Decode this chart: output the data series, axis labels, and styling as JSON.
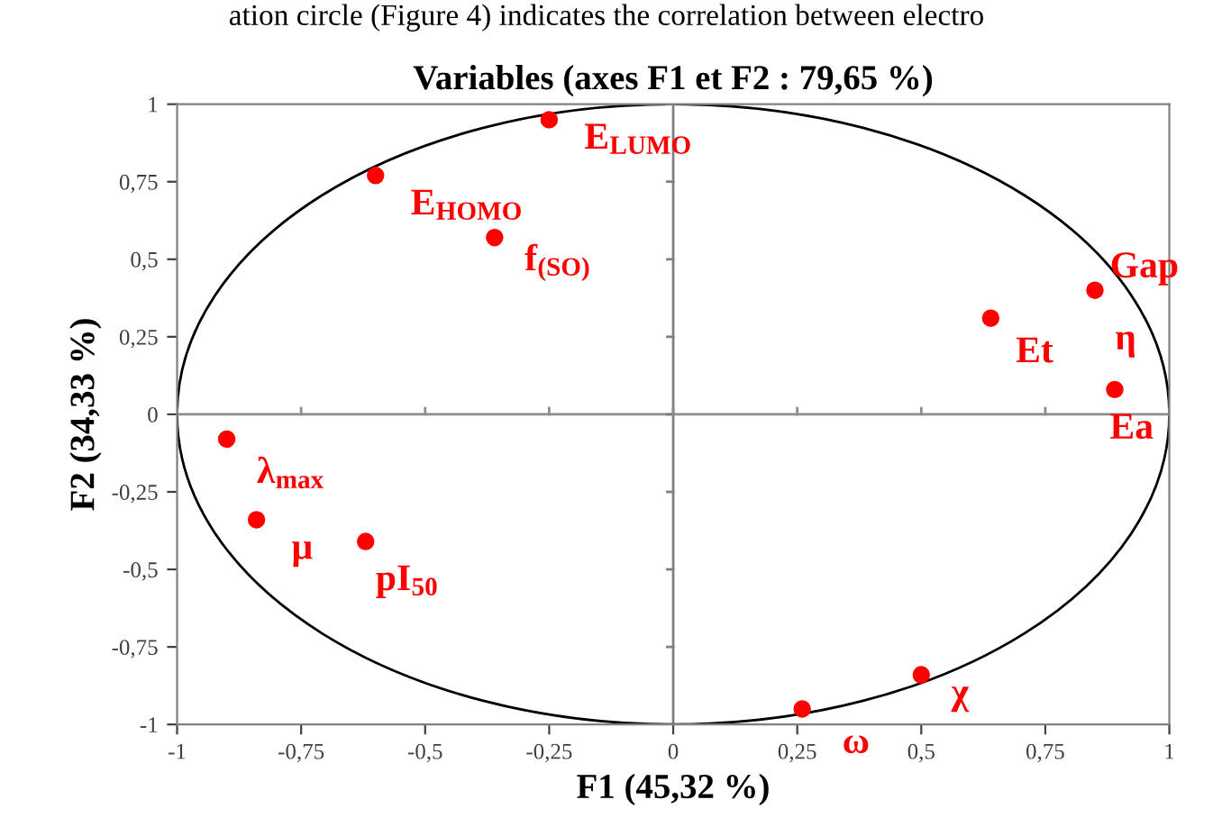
{
  "chart_data": {
    "type": "scatter",
    "title": "Variables (axes F1 et F2 : 79,65 %)",
    "xlabel": "F1 (45,32 %)",
    "ylabel": "F2 (34,33 %)",
    "x": [
      -0.25,
      -0.6,
      -0.36,
      0.85,
      0.64,
      0.89,
      -0.9,
      -0.84,
      -0.62,
      0.5,
      0.26
    ],
    "values": [
      0.95,
      0.77,
      0.57,
      0.4,
      0.31,
      0.08,
      -0.08,
      -0.34,
      -0.41,
      -0.84,
      -0.95
    ],
    "color": "#ff0000",
    "marker": "circle",
    "xlim": [
      -1,
      1
    ],
    "ylim": [
      -1,
      1
    ],
    "xticks": [
      -1,
      {
        "value": -0.75,
        "label": "-0,75"
      },
      {
        "value": -0.5,
        "label": "-0,5"
      },
      {
        "value": -0.25,
        "label": "-0,25"
      },
      0,
      {
        "value": 0.25,
        "label": "0,25"
      },
      {
        "value": 0.5,
        "label": "0,5"
      },
      {
        "value": 0.75,
        "label": "0,75"
      },
      1
    ],
    "yticks": [
      -1,
      {
        "value": -0.75,
        "label": "-0,75"
      },
      {
        "value": -0.5,
        "label": "-0,5"
      },
      {
        "value": -0.25,
        "label": "-0,25"
      },
      0,
      {
        "value": 0.25,
        "label": "0,25"
      },
      {
        "value": 0.5,
        "label": "0,5"
      },
      {
        "value": 0.75,
        "label": "0,75"
      },
      1
    ],
    "ref_lines": [
      {
        "axis": "x",
        "value": 0,
        "color": "#808080"
      },
      {
        "axis": "y",
        "value": 0,
        "color": "#8c8c8c"
      }
    ],
    "grid": false,
    "legend": false,
    "annotations": [
      {
        "text": "E$_{LUMO}$",
        "x": -0.25,
        "y": 0.95
      },
      {
        "text": "E$_{HOMO}$",
        "x": -0.6,
        "y": 0.77
      },
      {
        "text": "f$_{(SO)}$",
        "x": -0.36,
        "y": 0.57
      },
      {
        "text": "Gap",
        "x": 0.85,
        "y": 0.4
      },
      {
        "text": "η",
        "x": 0.85,
        "y": 0.4
      },
      {
        "text": "Et",
        "x": 0.64,
        "y": 0.31
      },
      {
        "text": "Ea",
        "x": 0.89,
        "y": 0.08
      },
      {
        "text": "λ$_{max}$",
        "x": -0.9,
        "y": -0.08
      },
      {
        "text": "μ",
        "x": -0.84,
        "y": -0.34
      },
      {
        "text": "pI$_{50}$",
        "x": -0.62,
        "y": -0.41
      },
      {
        "text": "χ",
        "x": 0.5,
        "y": -0.84
      },
      {
        "text": "ω",
        "x": 0.26,
        "y": -0.95
      },
      "ation circle (Figure 4) indicates the correlation between electro"
    ]
  }
}
